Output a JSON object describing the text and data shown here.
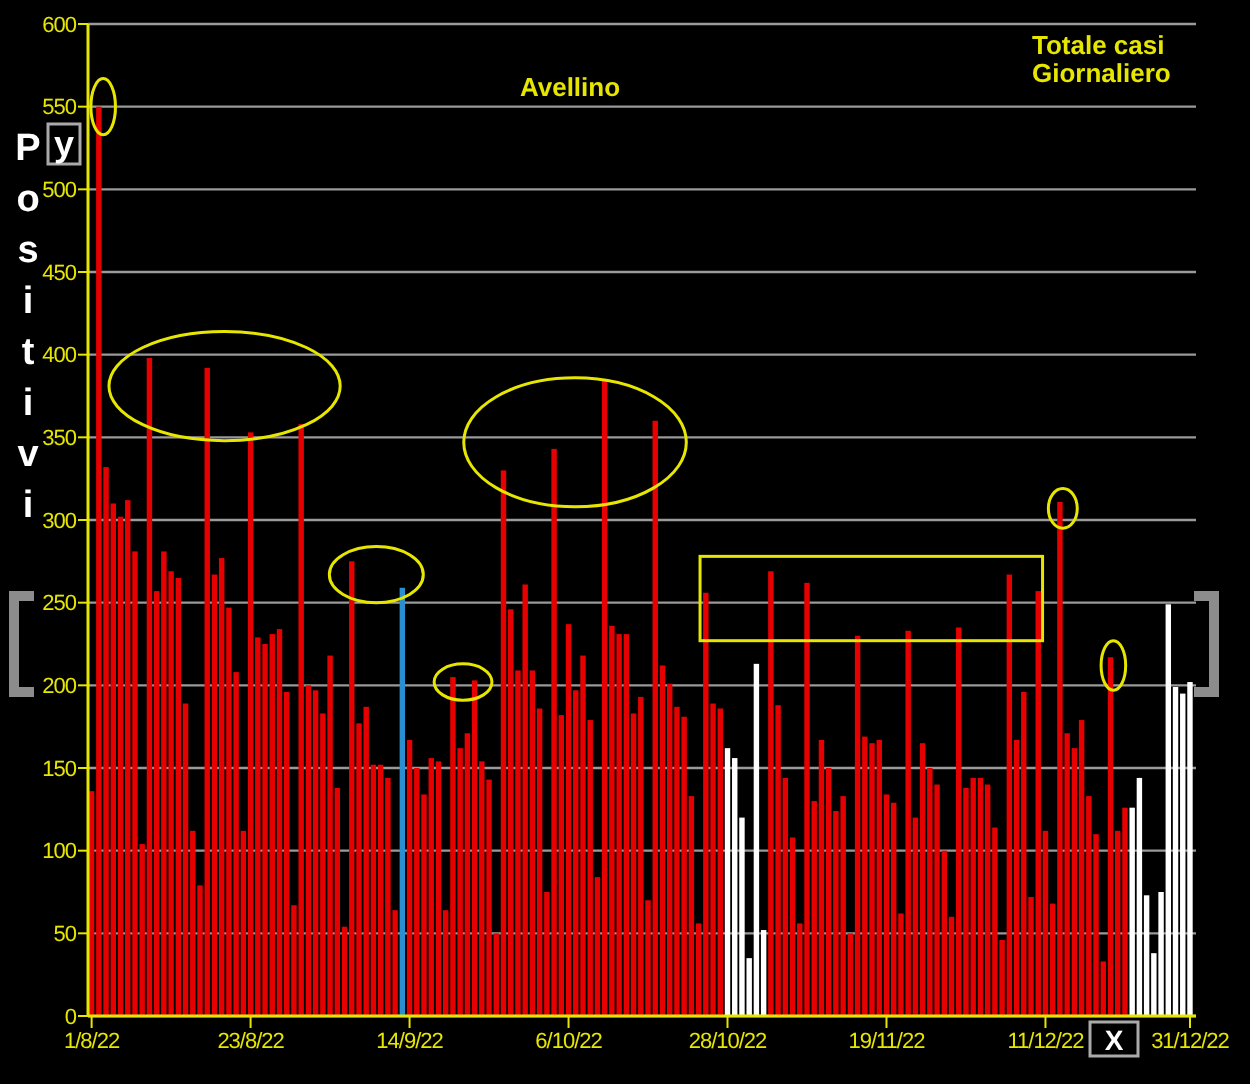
{
  "chart_data": {
    "type": "bar",
    "title": "Totale casi Giornaliero",
    "subtitle": "Avellino",
    "ylabel": "Positivi",
    "xlabel": "X",
    "annotations": [
      "y"
    ],
    "x": [
      "2022-08-01",
      "2022-08-02",
      "2022-08-03",
      "2022-08-04",
      "2022-08-05",
      "2022-08-06",
      "2022-08-07",
      "2022-08-08",
      "2022-08-09",
      "2022-08-10",
      "2022-08-11",
      "2022-08-12",
      "2022-08-13",
      "2022-08-14",
      "2022-08-15",
      "2022-08-16",
      "2022-08-17",
      "2022-08-18",
      "2022-08-19",
      "2022-08-20",
      "2022-08-21",
      "2022-08-22",
      "2022-08-23",
      "2022-08-24",
      "2022-08-25",
      "2022-08-26",
      "2022-08-27",
      "2022-08-28",
      "2022-08-29",
      "2022-08-30",
      "2022-08-31",
      "2022-09-01",
      "2022-09-02",
      "2022-09-03",
      "2022-09-04",
      "2022-09-05",
      "2022-09-06",
      "2022-09-07",
      "2022-09-08",
      "2022-09-09",
      "2022-09-10",
      "2022-09-11",
      "2022-09-12",
      "2022-09-13",
      "2022-09-14",
      "2022-09-15",
      "2022-09-16",
      "2022-09-17",
      "2022-09-18",
      "2022-09-19",
      "2022-09-20",
      "2022-09-21",
      "2022-09-22",
      "2022-09-23",
      "2022-09-24",
      "2022-09-25",
      "2022-09-26",
      "2022-09-27",
      "2022-09-28",
      "2022-09-29",
      "2022-09-30",
      "2022-10-01",
      "2022-10-02",
      "2022-10-03",
      "2022-10-04",
      "2022-10-05",
      "2022-10-06",
      "2022-10-07",
      "2022-10-08",
      "2022-10-09",
      "2022-10-10",
      "2022-10-11",
      "2022-10-12",
      "2022-10-13",
      "2022-10-14",
      "2022-10-15",
      "2022-10-16",
      "2022-10-17",
      "2022-10-18",
      "2022-10-19",
      "2022-10-20",
      "2022-10-21",
      "2022-10-22",
      "2022-10-23",
      "2022-10-24",
      "2022-10-25",
      "2022-10-26",
      "2022-10-27",
      "2022-10-28",
      "2022-10-29",
      "2022-10-30",
      "2022-10-31",
      "2022-11-01",
      "2022-11-02",
      "2022-11-03",
      "2022-11-04",
      "2022-11-05",
      "2022-11-06",
      "2022-11-07",
      "2022-11-08",
      "2022-11-09",
      "2022-11-10",
      "2022-11-11",
      "2022-11-12",
      "2022-11-13",
      "2022-11-14",
      "2022-11-15",
      "2022-11-16",
      "2022-11-17",
      "2022-11-18",
      "2022-11-19",
      "2022-11-20",
      "2022-11-21",
      "2022-11-22",
      "2022-11-23",
      "2022-11-24",
      "2022-11-25",
      "2022-11-26",
      "2022-11-27",
      "2022-11-28",
      "2022-11-29",
      "2022-11-30",
      "2022-12-01",
      "2022-12-02",
      "2022-12-03",
      "2022-12-04",
      "2022-12-05",
      "2022-12-06",
      "2022-12-07",
      "2022-12-08",
      "2022-12-09",
      "2022-12-10",
      "2022-12-11",
      "2022-12-12",
      "2022-12-13",
      "2022-12-14",
      "2022-12-15",
      "2022-12-16",
      "2022-12-17",
      "2022-12-18",
      "2022-12-19",
      "2022-12-20",
      "2022-12-21",
      "2022-12-22",
      "2022-12-23",
      "2022-12-24",
      "2022-12-25",
      "2022-12-26",
      "2022-12-27",
      "2022-12-28",
      "2022-12-29",
      "2022-12-30",
      "2022-12-31"
    ],
    "values": [
      136,
      550,
      332,
      310,
      302,
      312,
      281,
      104,
      398,
      257,
      281,
      269,
      265,
      189,
      112,
      79,
      392,
      267,
      277,
      247,
      208,
      112,
      353,
      229,
      225,
      231,
      234,
      196,
      67,
      358,
      200,
      197,
      183,
      218,
      138,
      54,
      275,
      177,
      187,
      152,
      152,
      144,
      64,
      259,
      167,
      150,
      134,
      156,
      154,
      64,
      205,
      162,
      171,
      203,
      154,
      143,
      50,
      330,
      246,
      209,
      261,
      209,
      186,
      75,
      343,
      182,
      237,
      197,
      218,
      179,
      84,
      384,
      236,
      231,
      231,
      183,
      193,
      70,
      360,
      212,
      201,
      187,
      181,
      133,
      56,
      256,
      189,
      186,
      162,
      156,
      120,
      35,
      213,
      52,
      269,
      188,
      144,
      108,
      56,
      262,
      130,
      167,
      150,
      124,
      133,
      50,
      230,
      169,
      165,
      167,
      134,
      129,
      62,
      233,
      120,
      165,
      150,
      140,
      100,
      60,
      235,
      138,
      144,
      144,
      140,
      114,
      46,
      267,
      167,
      196,
      72,
      257,
      112,
      68,
      311,
      171,
      162,
      179,
      133,
      110,
      33,
      217,
      112,
      126,
      126,
      144,
      73,
      38,
      75,
      249,
      199,
      195,
      202
    ],
    "colors": [
      "#e60000",
      "#e60000",
      "#e60000",
      "#e60000",
      "#e60000",
      "#e60000",
      "#e60000",
      "#e60000",
      "#e60000",
      "#e60000",
      "#e60000",
      "#e60000",
      "#e60000",
      "#e60000",
      "#e60000",
      "#e60000",
      "#e60000",
      "#e60000",
      "#e60000",
      "#e60000",
      "#e60000",
      "#e60000",
      "#e60000",
      "#e60000",
      "#e60000",
      "#e60000",
      "#e60000",
      "#e60000",
      "#e60000",
      "#e60000",
      "#e60000",
      "#e60000",
      "#e60000",
      "#e60000",
      "#e60000",
      "#e60000",
      "#e60000",
      "#e60000",
      "#e60000",
      "#e60000",
      "#e60000",
      "#e60000",
      "#e60000",
      "#2a8fd0",
      "#e60000",
      "#e60000",
      "#e60000",
      "#e60000",
      "#e60000",
      "#e60000",
      "#e60000",
      "#e60000",
      "#e60000",
      "#e60000",
      "#e60000",
      "#e60000",
      "#e60000",
      "#e60000",
      "#e60000",
      "#e60000",
      "#e60000",
      "#e60000",
      "#e60000",
      "#e60000",
      "#e60000",
      "#e60000",
      "#e60000",
      "#e60000",
      "#e60000",
      "#e60000",
      "#e60000",
      "#e60000",
      "#e60000",
      "#e60000",
      "#e60000",
      "#e60000",
      "#e60000",
      "#e60000",
      "#e60000",
      "#e60000",
      "#e60000",
      "#e60000",
      "#e60000",
      "#e60000",
      "#e60000",
      "#e60000",
      "#e60000",
      "#e60000",
      "#ffffff",
      "#ffffff",
      "#ffffff",
      "#ffffff",
      "#ffffff",
      "#ffffff",
      "#e60000",
      "#e60000",
      "#e60000",
      "#e60000",
      "#e60000",
      "#e60000",
      "#e60000",
      "#e60000",
      "#e60000",
      "#e60000",
      "#e60000",
      "#e60000",
      "#e60000",
      "#e60000",
      "#e60000",
      "#e60000",
      "#e60000",
      "#e60000",
      "#e60000",
      "#e60000",
      "#e60000",
      "#e60000",
      "#e60000",
      "#e60000",
      "#e60000",
      "#e60000",
      "#e60000",
      "#e60000",
      "#e60000",
      "#e60000",
      "#e60000",
      "#e60000",
      "#e60000",
      "#e60000",
      "#e60000",
      "#e60000",
      "#e60000",
      "#e60000",
      "#e60000",
      "#e60000",
      "#e60000",
      "#e60000",
      "#e60000",
      "#e60000",
      "#e60000",
      "#e60000",
      "#e60000",
      "#e60000",
      "#e60000",
      "#e60000",
      "#ffffff",
      "#ffffff",
      "#ffffff",
      "#ffffff",
      "#ffffff",
      "#ffffff",
      "#ffffff",
      "#ffffff",
      "#ffffff"
    ],
    "xlim": [
      "2022-07-31T12:00",
      "2022-12-31T20:00"
    ],
    "xticks": [
      {
        "value": "2022-08-01",
        "label": "1/8/22"
      },
      {
        "value": "2022-08-23",
        "label": "23/8/22"
      },
      {
        "value": "2022-09-14",
        "label": "14/9/22"
      },
      {
        "value": "2022-10-06",
        "label": "6/10/22"
      },
      {
        "value": "2022-10-28",
        "label": "28/10/22"
      },
      {
        "value": "2022-11-19",
        "label": "19/11/22"
      },
      {
        "value": "2022-12-11",
        "label": "11/12/22"
      },
      {
        "value": "2022-12-31",
        "label": "31/12/22"
      }
    ],
    "ylim": [
      0,
      600
    ],
    "yticks": [
      0,
      50,
      100,
      150,
      200,
      250,
      300,
      350,
      400,
      450,
      500,
      550,
      600
    ],
    "grid": "y"
  }
}
